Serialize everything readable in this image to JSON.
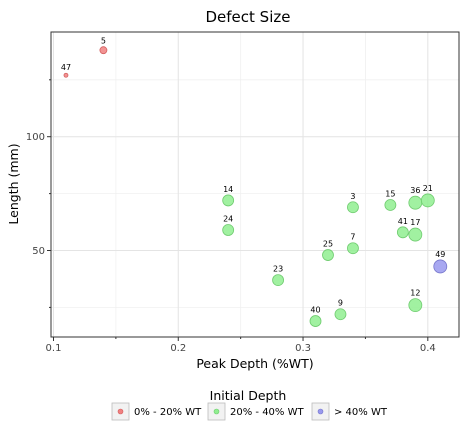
{
  "chart_data": {
    "type": "scatter",
    "title": "Defect Size",
    "xlabel": "Peak Depth (%WT)",
    "ylabel": "Length (mm)",
    "xlim": [
      0.098,
      0.425
    ],
    "ylim": [
      12,
      146
    ],
    "x_ticks": [
      0.1,
      0.2,
      0.3,
      0.4
    ],
    "x_tick_labels": [
      "0.1",
      "0.2",
      "0.3",
      "0.4"
    ],
    "y_ticks": [
      50,
      100
    ],
    "y_tick_labels": [
      "50",
      "100"
    ],
    "grid": true,
    "legend": {
      "title": "Initial Depth",
      "position": "bottom",
      "entries": [
        {
          "label": "0% - 20% WT",
          "color": "#f08080"
        },
        {
          "label": "20% - 40% WT",
          "color": "#90ee90"
        },
        {
          "label": "> 40% WT",
          "color": "#9999ee"
        }
      ]
    },
    "points": [
      {
        "label": "47",
        "x": 0.11,
        "y": 127,
        "series": 0,
        "size": 1
      },
      {
        "label": "5",
        "x": 0.14,
        "y": 138,
        "series": 0,
        "size": 2
      },
      {
        "label": "14",
        "x": 0.24,
        "y": 72,
        "series": 1,
        "size": 3
      },
      {
        "label": "24",
        "x": 0.24,
        "y": 59,
        "series": 1,
        "size": 3
      },
      {
        "label": "23",
        "x": 0.28,
        "y": 37,
        "series": 1,
        "size": 3
      },
      {
        "label": "40",
        "x": 0.31,
        "y": 19,
        "series": 1,
        "size": 3
      },
      {
        "label": "25",
        "x": 0.32,
        "y": 48,
        "series": 1,
        "size": 3
      },
      {
        "label": "9",
        "x": 0.33,
        "y": 22,
        "series": 1,
        "size": 3
      },
      {
        "label": "3",
        "x": 0.34,
        "y": 69,
        "series": 1,
        "size": 3
      },
      {
        "label": "7",
        "x": 0.34,
        "y": 51,
        "series": 1,
        "size": 3
      },
      {
        "label": "15",
        "x": 0.37,
        "y": 70,
        "series": 1,
        "size": 3
      },
      {
        "label": "41",
        "x": 0.38,
        "y": 58,
        "series": 1,
        "size": 3
      },
      {
        "label": "36",
        "x": 0.39,
        "y": 71,
        "series": 1,
        "size": 4
      },
      {
        "label": "17",
        "x": 0.39,
        "y": 57,
        "series": 1,
        "size": 4
      },
      {
        "label": "12",
        "x": 0.39,
        "y": 26,
        "series": 1,
        "size": 4
      },
      {
        "label": "21",
        "x": 0.4,
        "y": 72,
        "series": 1,
        "size": 4
      },
      {
        "label": "49",
        "x": 0.41,
        "y": 43,
        "series": 2,
        "size": 4
      }
    ]
  }
}
